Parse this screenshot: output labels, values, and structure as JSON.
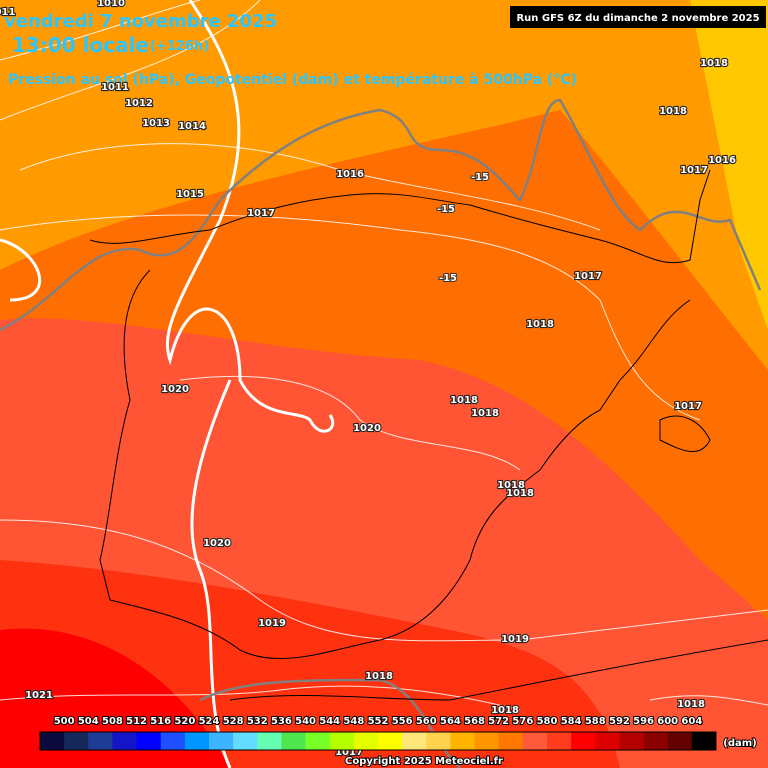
{
  "header": {
    "date": "vendredi 7 novembre 2025",
    "time": "13:00 locale",
    "lead": "(+126h)",
    "subtitle": "Pression au sol (hPa), Geopotentiel (dam) et température à 500hPa (°C)",
    "run": "Run GFS 6Z du dimanche 2 novembre 2025"
  },
  "isobar_labels": [
    "1010",
    "011",
    "1011",
    "1012",
    "1013",
    "1014",
    "1018",
    "1018",
    "1016",
    "1017",
    "1016",
    "1015",
    "1017",
    "1017",
    "1018",
    "1020",
    "1018",
    "1018",
    "1017",
    "1020",
    "1018",
    "1018",
    "1020",
    "1019",
    "1019",
    "1018",
    "1021",
    "1018",
    "1018",
    "1017"
  ],
  "temperature_labels": [
    "-15",
    "-15",
    "-15"
  ],
  "colorbar": {
    "ticks": [
      500,
      504,
      508,
      512,
      516,
      520,
      524,
      528,
      532,
      536,
      540,
      544,
      548,
      552,
      556,
      560,
      564,
      568,
      572,
      576,
      580,
      584,
      588,
      592,
      596,
      600,
      604
    ],
    "colors": [
      "#0a0a3c",
      "#14285a",
      "#1e3c96",
      "#1414c8",
      "#0000ff",
      "#1e50ff",
      "#0096ff",
      "#3cb4ff",
      "#64dcff",
      "#64ffb4",
      "#50e650",
      "#78ff28",
      "#b4ff00",
      "#e6ff00",
      "#ffff00",
      "#ffe678",
      "#ffd250",
      "#ffb400",
      "#ff9600",
      "#ff7800",
      "#ff5a3c",
      "#ff3c1e",
      "#ff0000",
      "#dc0000",
      "#b40000",
      "#8c0000",
      "#640000",
      "#000000"
    ],
    "unit": "(dam)"
  },
  "footer": {
    "copyright": "Copyright 2025 Meteociel.fr"
  }
}
